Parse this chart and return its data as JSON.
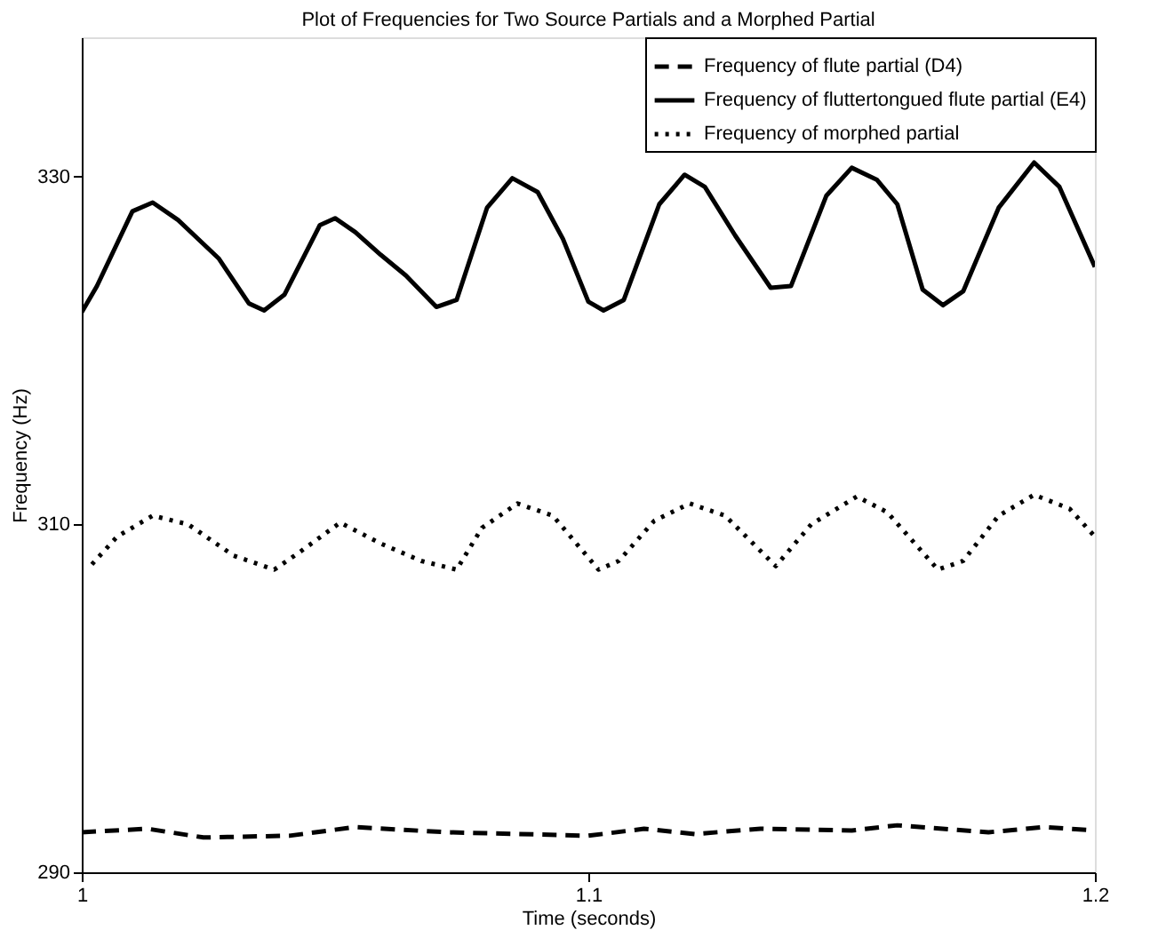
{
  "chart_data": {
    "type": "line",
    "title": "Plot of Frequencies for Two Source Partials and a Morphed Partial",
    "xlabel": "Time (seconds)",
    "ylabel": "Frequency (Hz)",
    "xlim": [
      1,
      1.2
    ],
    "xticks": [
      1,
      1.1,
      1.2
    ],
    "ylim": [
      290,
      338
    ],
    "yticks": [
      290,
      310,
      330
    ],
    "grid": false,
    "legend": "top right",
    "marker": "none",
    "series": [
      {
        "name": "Frequency of flute partial (D4)",
        "color": "#000000",
        "line_style": "dashed",
        "x": [
          1.0,
          1.013,
          1.024,
          1.041,
          1.054,
          1.072,
          1.1,
          1.111,
          1.121,
          1.134,
          1.152,
          1.161,
          1.179,
          1.19,
          1.2
        ],
        "values": [
          292.3,
          292.5,
          292.0,
          292.1,
          292.6,
          292.3,
          292.1,
          292.5,
          292.2,
          292.5,
          292.4,
          292.7,
          292.3,
          292.6,
          292.4
        ]
      },
      {
        "name": "Frequency of fluttertongued flute partial (E4)",
        "color": "#000000",
        "line_style": "solid",
        "x": [
          1.0,
          1.003,
          1.01,
          1.014,
          1.019,
          1.027,
          1.033,
          1.036,
          1.04,
          1.047,
          1.05,
          1.054,
          1.059,
          1.064,
          1.07,
          1.074,
          1.08,
          1.085,
          1.09,
          1.095,
          1.1,
          1.103,
          1.107,
          1.114,
          1.119,
          1.123,
          1.129,
          1.136,
          1.14,
          1.147,
          1.152,
          1.157,
          1.161,
          1.166,
          1.17,
          1.174,
          1.181,
          1.188,
          1.193,
          1.2
        ],
        "values": [
          322.2,
          323.7,
          328.0,
          328.5,
          327.5,
          325.3,
          322.7,
          322.3,
          323.2,
          327.2,
          327.6,
          326.8,
          325.5,
          324.3,
          322.5,
          322.9,
          328.2,
          329.9,
          329.1,
          326.4,
          322.8,
          322.3,
          322.9,
          328.4,
          330.1,
          329.4,
          326.6,
          323.6,
          323.7,
          328.9,
          330.5,
          329.8,
          328.4,
          323.5,
          322.6,
          323.4,
          328.2,
          330.8,
          329.4,
          324.8
        ]
      },
      {
        "name": "Frequency of morphed partial",
        "color": "#000000",
        "line_style": "dotted",
        "x": [
          1.002,
          1.007,
          1.014,
          1.021,
          1.03,
          1.038,
          1.043,
          1.051,
          1.059,
          1.067,
          1.074,
          1.079,
          1.086,
          1.093,
          1.102,
          1.106,
          1.113,
          1.12,
          1.127,
          1.137,
          1.144,
          1.153,
          1.159,
          1.169,
          1.174,
          1.181,
          1.188,
          1.195,
          1.2
        ],
        "values": [
          307.7,
          309.3,
          310.5,
          310.0,
          308.2,
          307.4,
          308.4,
          310.1,
          308.9,
          307.9,
          307.4,
          309.8,
          311.2,
          310.5,
          307.4,
          307.9,
          310.2,
          311.2,
          310.5,
          307.6,
          310.0,
          311.6,
          310.7,
          307.4,
          307.9,
          310.5,
          311.7,
          310.9,
          309.3
        ]
      }
    ]
  }
}
